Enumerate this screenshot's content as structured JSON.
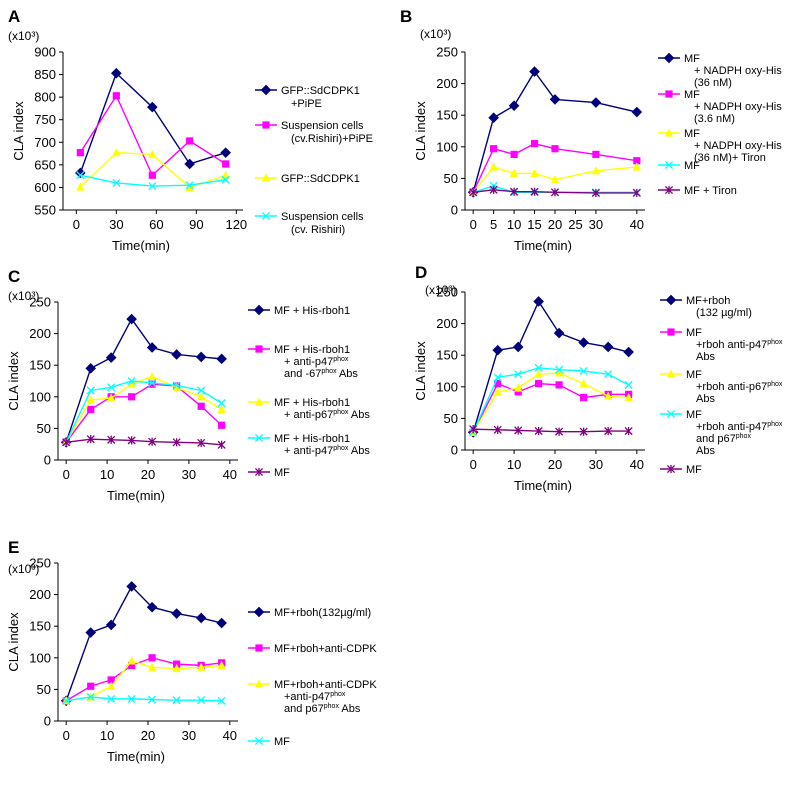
{
  "chart_data": [
    {
      "id": "A",
      "panel_label": "A",
      "type": "line",
      "unit_label": "(x10³)",
      "ylabel": "CLA index",
      "xlabel": "Time(min)",
      "xlim": [
        -10,
        125
      ],
      "ylim": [
        550,
        900
      ],
      "xticks": [
        0,
        30,
        60,
        90,
        120
      ],
      "yticks": [
        550,
        600,
        650,
        700,
        750,
        800,
        850,
        900
      ],
      "series": [
        {
          "name": "GFP::SdCDPK1 +PiPE",
          "color": "#00007a",
          "marker": "diamond",
          "x": [
            3,
            30,
            57,
            85,
            112
          ],
          "y": [
            632,
            853,
            778,
            652,
            677
          ],
          "legend_lines": [
            [
              "GFP::SdCDPK1"
            ],
            [
              "+PiPE"
            ]
          ]
        },
        {
          "name": "Suspension cells (cv.Rishiri)+PiPE",
          "color": "#ff00ff",
          "marker": "square",
          "x": [
            3,
            30,
            57,
            85,
            112
          ],
          "y": [
            677,
            803,
            627,
            703,
            652
          ],
          "legend_lines": [
            [
              "Suspension cells"
            ],
            [
              "(cv.Rishiri)+PiPE"
            ]
          ]
        },
        {
          "name": "GFP::SdCDPK1",
          "color": "#ffff00",
          "marker": "triangle",
          "x": [
            3,
            30,
            57,
            85,
            112
          ],
          "y": [
            601,
            677,
            673,
            600,
            627
          ],
          "legend_lines": [
            [
              "GFP::SdCDPK1"
            ]
          ]
        },
        {
          "name": "Suspension cells (cv. Rishiri)",
          "color": "#00ffff",
          "marker": "x",
          "x": [
            3,
            30,
            57,
            85,
            112
          ],
          "y": [
            627,
            610,
            603,
            605,
            617
          ],
          "legend_lines": [
            [
              "Suspension cells"
            ],
            [
              "(cv. Rishiri)"
            ]
          ]
        }
      ]
    },
    {
      "id": "B",
      "panel_label": "B",
      "type": "line",
      "unit_label": "(x10³)",
      "ylabel": "CLA index",
      "xlabel": "Time(min)",
      "xlim": [
        -2,
        42
      ],
      "ylim": [
        0,
        250
      ],
      "xticks": [
        0,
        5,
        10,
        15,
        20,
        25,
        30,
        40
      ],
      "yticks": [
        0,
        50,
        100,
        150,
        200,
        250
      ],
      "series": [
        {
          "name": "MF + NADPH oxy-His (36 nM)",
          "color": "#00007a",
          "marker": "diamond",
          "x": [
            0,
            5,
            10,
            15,
            20,
            30,
            40
          ],
          "y": [
            28,
            146,
            165,
            219,
            175,
            170,
            155
          ],
          "legend_lines": [
            [
              "MF"
            ],
            [
              "+ NADPH oxy-His"
            ],
            [
              "(36 nM)"
            ]
          ]
        },
        {
          "name": "MF + NADPH oxy-His (3.6 nM)",
          "color": "#ff00ff",
          "marker": "square",
          "x": [
            0,
            5,
            10,
            15,
            20,
            30,
            40
          ],
          "y": [
            28,
            97,
            88,
            105,
            97,
            88,
            78
          ],
          "legend_lines": [
            [
              "MF"
            ],
            [
              "+ NADPH oxy-His"
            ],
            [
              "(3.6 nM)"
            ]
          ]
        },
        {
          "name": "MF + NADPH oxy-His (36 nM)+ Tiron",
          "color": "#ffff00",
          "marker": "triangle",
          "x": [
            0,
            5,
            10,
            15,
            20,
            30,
            40
          ],
          "y": [
            28,
            68,
            58,
            58,
            48,
            62,
            68
          ],
          "legend_lines": [
            [
              "MF"
            ],
            [
              "+ NADPH oxy-His"
            ],
            [
              "(36 nM)+ Tiron"
            ]
          ]
        },
        {
          "name": "MF",
          "color": "#00ffff",
          "marker": "x",
          "x": [
            0,
            5,
            10,
            15,
            20,
            30,
            40
          ],
          "y": [
            28,
            38,
            28,
            28,
            28,
            28,
            28
          ],
          "legend_lines": [
            [
              "MF"
            ]
          ]
        },
        {
          "name": "MF + Tiron",
          "color": "#800080",
          "marker": "star",
          "x": [
            0,
            5,
            10,
            15,
            20,
            30,
            40
          ],
          "y": [
            28,
            32,
            29,
            29,
            28,
            27,
            27
          ],
          "legend_lines": [
            [
              "MF + Tiron"
            ]
          ]
        }
      ]
    },
    {
      "id": "C",
      "panel_label": "C",
      "type": "line",
      "unit_label": "(x10³)",
      "ylabel": "CLA index",
      "xlabel": "Time(min)",
      "xlim": [
        -2,
        42
      ],
      "ylim": [
        0,
        250
      ],
      "xticks": [
        0,
        10,
        20,
        30,
        40
      ],
      "yticks": [
        0,
        50,
        100,
        150,
        200,
        250
      ],
      "series": [
        {
          "name": "MF + His-rboh1",
          "color": "#00007a",
          "marker": "diamond",
          "x": [
            0,
            6,
            11,
            16,
            21,
            27,
            33,
            38
          ],
          "y": [
            28,
            145,
            162,
            223,
            178,
            167,
            163,
            160
          ],
          "legend_lines": [
            [
              "MF + His-rboh1"
            ]
          ]
        },
        {
          "name": "MF + His-rboh1 + anti-p47phox and -67phox Abs",
          "color": "#ff00ff",
          "marker": "square",
          "x": [
            0,
            6,
            11,
            16,
            21,
            27,
            33,
            38
          ],
          "y": [
            28,
            80,
            100,
            100,
            120,
            117,
            85,
            55
          ],
          "legend_lines": [
            [
              "MF + His-rboh1"
            ],
            [
              "+ anti-p47",
              "phox"
            ],
            [
              "and -67",
              "phox",
              " Abs"
            ]
          ]
        },
        {
          "name": "MF + His-rboh1 + anti-p67phox Abs",
          "color": "#ffff00",
          "marker": "triangle",
          "x": [
            0,
            6,
            11,
            16,
            21,
            27,
            33,
            38
          ],
          "y": [
            28,
            95,
            98,
            120,
            132,
            115,
            100,
            80
          ],
          "legend_lines": [
            [
              "MF + His-rboh1"
            ],
            [
              "+ anti-p67",
              "phox",
              " Abs"
            ]
          ]
        },
        {
          "name": "MF + His-rboh1 + anti-p47phox Abs",
          "color": "#00ffff",
          "marker": "x",
          "x": [
            0,
            6,
            11,
            16,
            21,
            27,
            33,
            38
          ],
          "y": [
            28,
            110,
            115,
            125,
            122,
            118,
            110,
            90
          ],
          "legend_lines": [
            [
              "MF + His-rboh1"
            ],
            [
              "+ anti-p47",
              "phox",
              " Abs"
            ]
          ]
        },
        {
          "name": "MF",
          "color": "#800080",
          "marker": "star",
          "x": [
            0,
            6,
            11,
            16,
            21,
            27,
            33,
            38
          ],
          "y": [
            28,
            33,
            32,
            31,
            29,
            28,
            27,
            24
          ],
          "legend_lines": [
            [
              "MF"
            ]
          ]
        }
      ]
    },
    {
      "id": "D",
      "panel_label": "D",
      "type": "line",
      "unit_label": "(x10³)",
      "ylabel": "CLA index",
      "xlabel": "Time(min)",
      "xlim": [
        -2,
        42
      ],
      "ylim": [
        0,
        250
      ],
      "xticks": [
        0,
        10,
        20,
        30,
        40
      ],
      "yticks": [
        0,
        50,
        100,
        150,
        200,
        250
      ],
      "series": [
        {
          "name": "MF+rboh (132 µg/ml)",
          "color": "#00007a",
          "marker": "diamond",
          "x": [
            0,
            6,
            11,
            16,
            21,
            27,
            33,
            38
          ],
          "y": [
            28,
            158,
            163,
            235,
            185,
            170,
            163,
            155
          ],
          "legend_lines": [
            [
              "MF+rboh"
            ],
            [
              "(132 µg/ml)"
            ]
          ]
        },
        {
          "name": "MF +rboh anti-p47phox Abs",
          "color": "#ff00ff",
          "marker": "square",
          "x": [
            0,
            6,
            11,
            16,
            21,
            27,
            33,
            38
          ],
          "y": [
            28,
            105,
            92,
            105,
            103,
            83,
            88,
            88
          ],
          "legend_lines": [
            [
              "MF"
            ],
            [
              "+rboh  anti-p47",
              "phox"
            ],
            [
              "Abs"
            ]
          ]
        },
        {
          "name": "MF +rboh anti-p67phox Abs",
          "color": "#ffff00",
          "marker": "triangle",
          "x": [
            0,
            6,
            11,
            16,
            21,
            27,
            33,
            38
          ],
          "y": [
            28,
            92,
            98,
            120,
            122,
            105,
            85,
            83
          ],
          "legend_lines": [
            [
              "MF"
            ],
            [
              "+rboh anti-p67",
              "phox"
            ],
            [
              "Abs"
            ]
          ]
        },
        {
          "name": "MF +rboh anti-p47phox and p67phox Abs",
          "color": "#00ffff",
          "marker": "x",
          "x": [
            0,
            6,
            11,
            16,
            21,
            27,
            33,
            38
          ],
          "y": [
            28,
            115,
            120,
            130,
            127,
            125,
            120,
            103
          ],
          "legend_lines": [
            [
              "MF"
            ],
            [
              "+rboh anti-p47",
              "phox"
            ],
            [
              "and p67",
              "phox"
            ],
            [
              "Abs"
            ]
          ]
        },
        {
          "name": "MF",
          "color": "#800080",
          "marker": "star",
          "x": [
            0,
            6,
            11,
            16,
            21,
            27,
            33,
            38
          ],
          "y": [
            33,
            32,
            31,
            30,
            29,
            29,
            30,
            30
          ],
          "legend_lines": [
            [
              "MF"
            ]
          ]
        }
      ]
    },
    {
      "id": "E",
      "panel_label": "E",
      "type": "line",
      "unit_label": "(x10³)",
      "ylabel": "CLA index",
      "xlabel": "Time(min)",
      "xlim": [
        -2,
        42
      ],
      "ylim": [
        0,
        250
      ],
      "xticks": [
        0,
        10,
        20,
        30,
        40
      ],
      "yticks": [
        0,
        50,
        100,
        150,
        200,
        250
      ],
      "series": [
        {
          "name": "MF+rboh(132µg/ml)",
          "color": "#00007a",
          "marker": "diamond",
          "x": [
            0,
            6,
            11,
            16,
            21,
            27,
            33,
            38
          ],
          "y": [
            32,
            140,
            152,
            213,
            180,
            170,
            163,
            155
          ],
          "legend_lines": [
            [
              "MF+rboh(132µg/ml)"
            ]
          ]
        },
        {
          "name": "MF+rboh+anti-CDPK",
          "color": "#ff00ff",
          "marker": "square",
          "x": [
            0,
            6,
            11,
            16,
            21,
            27,
            33,
            38
          ],
          "y": [
            32,
            55,
            65,
            88,
            100,
            90,
            88,
            92
          ],
          "legend_lines": [
            [
              "MF+rboh+anti-CDPK"
            ]
          ]
        },
        {
          "name": "MF+rboh+anti-CDPK +anti-p47phox and p67phox Abs",
          "color": "#ffff00",
          "marker": "triangle",
          "x": [
            0,
            6,
            11,
            16,
            21,
            27,
            33,
            38
          ],
          "y": [
            32,
            38,
            55,
            95,
            85,
            83,
            85,
            88
          ],
          "legend_lines": [
            [
              "MF+rboh+anti-CDPK"
            ],
            [
              "+anti-p47",
              "phox"
            ],
            [
              "and p67",
              "phox",
              " Abs"
            ]
          ]
        },
        {
          "name": "MF",
          "color": "#00ffff",
          "marker": "x",
          "x": [
            0,
            6,
            11,
            16,
            21,
            27,
            33,
            38
          ],
          "y": [
            32,
            38,
            35,
            35,
            34,
            33,
            33,
            32
          ],
          "legend_lines": [
            [
              "MF"
            ]
          ]
        }
      ]
    }
  ]
}
